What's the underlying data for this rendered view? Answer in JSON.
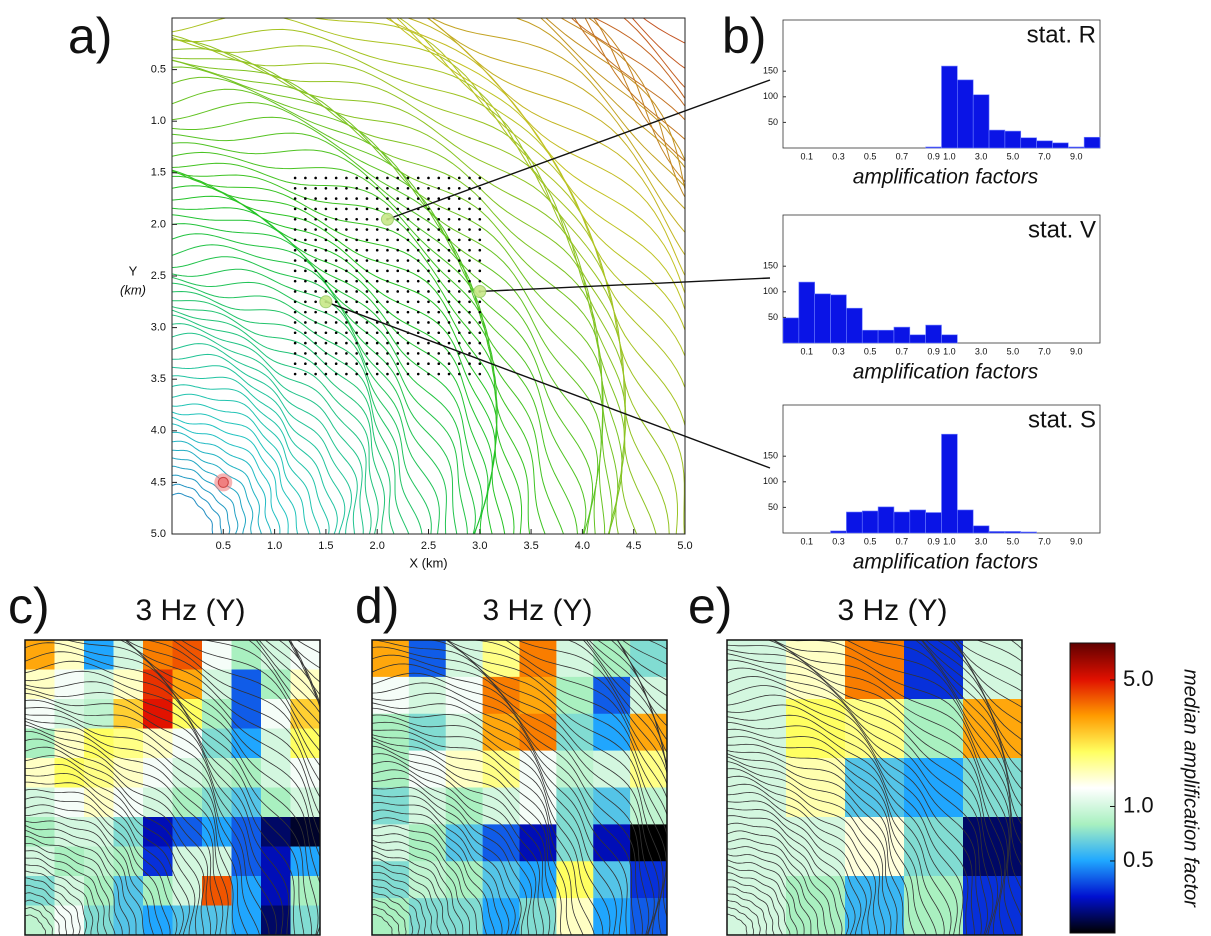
{
  "panel_labels": [
    "a)",
    "b)",
    "c)",
    "d)",
    "e)"
  ],
  "chart_data": [
    {
      "type": "contour_map",
      "xlabel": "X (km)",
      "ylabel": "Y",
      "ylabel_unit": "(km)",
      "xlim": [
        0,
        5
      ],
      "ylim": [
        0,
        5
      ],
      "y_inverted": true,
      "xticks": [
        0.5,
        {
          "value": 1,
          "label": "1.0"
        },
        1.5,
        {
          "value": 2,
          "label": "2.0"
        },
        2.5,
        {
          "value": 3,
          "label": "3.0"
        },
        3.5,
        {
          "value": 4,
          "label": "4.0"
        },
        4.5,
        {
          "value": 5,
          "label": "5.0"
        }
      ],
      "yticks": [
        0.5,
        {
          "value": 1,
          "label": "1.0"
        },
        1.5,
        {
          "value": 2,
          "label": "2.0"
        },
        2.5,
        {
          "value": 3,
          "label": "3.0"
        },
        3.5,
        {
          "value": 4,
          "label": "4.0"
        },
        4.5,
        {
          "value": 5,
          "label": "5.0"
        }
      ],
      "stations": [
        {
          "x": 2.1,
          "y": 1.95
        },
        {
          "x": 3.0,
          "y": 2.65
        },
        {
          "x": 1.5,
          "y": 2.75
        }
      ],
      "station_color": "#c8e888",
      "source": {
        "x": 0.5,
        "y": 4.5
      },
      "source_color": "#f08080"
    },
    {
      "type": "histbar",
      "title": "stat. R",
      "xlabel": "amplification factors",
      "categories": [
        null,
        "0.1",
        null,
        "0.3",
        null,
        "0.5",
        null,
        "0.7",
        null,
        "0.9",
        "1.0",
        null,
        "3.0",
        null,
        "5.0",
        null,
        "7.0",
        null,
        "9.0",
        null
      ],
      "values": [
        0,
        0,
        0,
        0,
        0,
        0,
        0,
        0,
        0,
        2,
        160,
        133,
        104,
        35,
        33,
        20,
        14,
        10,
        2,
        21
      ],
      "ylim": [
        0,
        250
      ],
      "yticks": [
        50,
        100,
        150
      ],
      "color": "#0a14e6"
    },
    {
      "type": "histbar",
      "title": "stat. V",
      "xlabel": "amplification factors",
      "categories": [
        null,
        "0.1",
        null,
        "0.3",
        null,
        "0.5",
        null,
        "0.7",
        null,
        "0.9",
        "1.0",
        null,
        "3.0",
        null,
        "5.0",
        null,
        "7.0",
        null,
        "9.0",
        null
      ],
      "values": [
        49,
        119,
        96,
        94,
        68,
        25,
        25,
        31,
        16,
        35,
        16,
        0,
        0,
        0,
        0,
        0,
        0,
        0,
        0,
        0
      ],
      "ylim": [
        0,
        250
      ],
      "yticks": [
        50,
        100,
        150
      ],
      "color": "#0a14e6"
    },
    {
      "type": "histbar",
      "title": "stat. S",
      "xlabel": "amplification factors",
      "categories": [
        null,
        "0.1",
        null,
        "0.3",
        null,
        "0.5",
        null,
        "0.7",
        null,
        "0.9",
        "1.0",
        null,
        "3.0",
        null,
        "5.0",
        null,
        "7.0",
        null,
        "9.0",
        null
      ],
      "values": [
        0,
        0,
        0,
        4,
        41,
        43,
        51,
        41,
        45,
        40,
        193,
        45,
        14,
        3,
        3,
        2,
        0,
        0,
        0,
        0
      ],
      "ylim": [
        0,
        250
      ],
      "yticks": [
        50,
        100,
        150
      ],
      "color": "#0a14e6"
    },
    {
      "type": "heatmap",
      "title": "3 Hz (Y)",
      "z": [
        [
          3,
          1.5,
          0.5,
          1,
          3.5,
          4,
          1.2,
          0.8,
          1.0,
          1.2
        ],
        [
          1.5,
          1.2,
          1.0,
          1.5,
          4.5,
          3,
          1.0,
          0.4,
          0.8,
          1.5
        ],
        [
          1.2,
          1.0,
          0.9,
          2.5,
          5,
          2,
          0.8,
          0.4,
          1.2,
          2.5
        ],
        [
          0.8,
          1.5,
          2,
          1.8,
          1.5,
          1.2,
          0.7,
          0.5,
          1.0,
          2
        ],
        [
          1.5,
          2,
          1.8,
          1.5,
          1.2,
          1.0,
          0.9,
          0.8,
          1.0,
          1.2
        ],
        [
          1.0,
          1.2,
          1.5,
          1.2,
          1.0,
          0.8,
          0.7,
          0.6,
          0.8,
          1.0
        ],
        [
          0.8,
          1.0,
          1.0,
          0.7,
          0.3,
          0.4,
          0.5,
          0.4,
          0.25,
          0.22
        ],
        [
          1.0,
          0.8,
          0.9,
          0.8,
          0.35,
          1.0,
          1.0,
          0.4,
          0.3,
          0.5
        ],
        [
          0.7,
          1.0,
          0.8,
          0.6,
          0.8,
          1.0,
          4,
          0.5,
          0.3,
          0.8
        ],
        [
          0.9,
          1.2,
          0.7,
          0.6,
          0.5,
          0.6,
          0.6,
          0.5,
          0.25,
          0.7
        ]
      ]
    },
    {
      "type": "heatmap",
      "title": "3 Hz (Y)",
      "z": [
        [
          3,
          0.4,
          1.0,
          1.8,
          3.5,
          1.0,
          0.8,
          0.7
        ],
        [
          1.2,
          1.0,
          1.2,
          3.5,
          3,
          0.8,
          0.4,
          1.0
        ],
        [
          0.8,
          0.7,
          1.0,
          3,
          3.5,
          0.7,
          0.5,
          3
        ],
        [
          0.8,
          1.2,
          1.5,
          1.8,
          1.2,
          0.9,
          1.0,
          1.8
        ],
        [
          0.7,
          1.0,
          0.8,
          1.0,
          1.2,
          0.7,
          0.6,
          0.9
        ],
        [
          1.0,
          0.8,
          0.6,
          0.4,
          0.3,
          0.7,
          0.3,
          0.2
        ],
        [
          0.7,
          0.9,
          0.8,
          0.6,
          0.5,
          2,
          0.6,
          0.35
        ],
        [
          0.8,
          0.7,
          0.7,
          0.5,
          0.7,
          1.5,
          0.5,
          0.4
        ]
      ]
    },
    {
      "type": "heatmap",
      "title": "3 Hz (Y)",
      "z": [
        [
          1.0,
          1.5,
          3.5,
          0.35,
          1.0
        ],
        [
          1.0,
          2,
          1.8,
          0.8,
          3
        ],
        [
          1.0,
          1.6,
          0.6,
          0.5,
          0.7
        ],
        [
          1.0,
          1.0,
          1.4,
          0.7,
          0.25
        ],
        [
          1.0,
          0.8,
          0.55,
          0.8,
          0.35
        ]
      ]
    },
    {
      "type": "colorbar",
      "label": "median amplification factor",
      "zlim": [
        0.2,
        8
      ],
      "log": true,
      "ticks": [
        0.5,
        {
          "value": 1,
          "label": "1.0"
        },
        {
          "value": 5,
          "label": "5.0"
        }
      ],
      "colors": [
        "#000000",
        "#0010d0",
        "#20a8ff",
        "#a8f0c0",
        "#ffffff",
        "#ffff60",
        "#ff9a00",
        "#e01000",
        "#600000"
      ]
    }
  ]
}
